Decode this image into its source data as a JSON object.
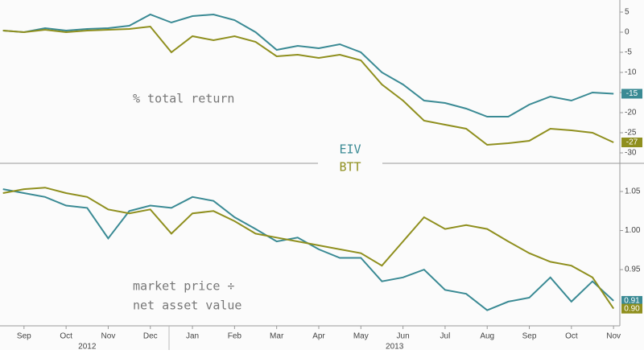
{
  "chart_data": [
    {
      "type": "line",
      "annotation": "% total return",
      "x": [
        0.5,
        1,
        1.5,
        2,
        2.5,
        3,
        3.5,
        4,
        4.5,
        5,
        5.5,
        6,
        6.5,
        7,
        7.5,
        8,
        8.5,
        9,
        9.5,
        10,
        10.5,
        11,
        11.5,
        12,
        12.5,
        13,
        13.5,
        14,
        14.5,
        15
      ],
      "xlim": [
        0.43,
        15.15
      ],
      "ylim": [
        -32,
        8
      ],
      "yticks": [
        5,
        0,
        -5,
        -10,
        -15,
        -20,
        -25,
        -30
      ],
      "series": [
        {
          "name": "EIV",
          "color": "#3a8a94",
          "end_label": "-15",
          "values": [
            0.4,
            0,
            1,
            0.4,
            0.8,
            1,
            1.6,
            4.4,
            2.4,
            4,
            4.4,
            3,
            0,
            -4.4,
            -3.4,
            -4,
            -3,
            -5,
            -10,
            -13,
            -17,
            -17.6,
            -19,
            -21,
            -21,
            -18,
            -16,
            -17,
            -15,
            -15.3
          ]
        },
        {
          "name": "BTT",
          "color": "#8f8f1e",
          "end_label": "-27",
          "values": [
            0.4,
            0,
            0.6,
            0,
            0.4,
            0.6,
            0.8,
            1.4,
            -5,
            -1,
            -2,
            -1,
            -2.4,
            -6,
            -5.6,
            -6.4,
            -5.6,
            -7,
            -13,
            -17,
            -22,
            -23,
            -24,
            -28,
            -27.6,
            -27,
            -24,
            -24.4,
            -25,
            -27.4
          ]
        }
      ]
    },
    {
      "type": "line",
      "annotation": [
        "market price ÷",
        "net asset value"
      ],
      "x": [
        0.5,
        1,
        1.5,
        2,
        2.5,
        3,
        3.5,
        4,
        4.5,
        5,
        5.5,
        6,
        6.5,
        7,
        7.5,
        8,
        8.5,
        9,
        9.5,
        10,
        10.5,
        11,
        11.5,
        12,
        12.5,
        13,
        13.5,
        14,
        14.5,
        15
      ],
      "xlim": [
        0.43,
        15.15
      ],
      "ylim": [
        0.878,
        1.084
      ],
      "yticks": [
        1.05,
        {
          "value": 1,
          "label": "1.00"
        },
        0.95
      ],
      "xticks": [
        {
          "value": 1,
          "label": "Sep"
        },
        {
          "value": 2,
          "label": "Oct"
        },
        {
          "value": 3,
          "label": "Nov"
        },
        {
          "value": 4,
          "label": "Dec"
        },
        {
          "value": 5,
          "label": "Jan"
        },
        {
          "value": 6,
          "label": "Feb"
        },
        {
          "value": 7,
          "label": "Mar"
        },
        {
          "value": 8,
          "label": "Apr"
        },
        {
          "value": 9,
          "label": "May"
        },
        {
          "value": 10,
          "label": "Jun"
        },
        {
          "value": 11,
          "label": "Jul"
        },
        {
          "value": 12,
          "label": "Aug"
        },
        {
          "value": 13,
          "label": "Sep"
        },
        {
          "value": 14,
          "label": "Oct"
        },
        {
          "value": 15,
          "label": "Nov"
        }
      ],
      "year_labels": [
        {
          "value": 2.5,
          "label": "2012"
        },
        {
          "value": 9.8,
          "label": "2013"
        }
      ],
      "series": [
        {
          "color": "#3a8a94",
          "end_label": "0.91",
          "values": [
            1.053,
            1.048,
            1.043,
            1.032,
            1.029,
            0.99,
            1.025,
            1.032,
            1.029,
            1.043,
            1.038,
            1.017,
            1.002,
            0.986,
            0.991,
            0.976,
            0.965,
            0.965,
            0.935,
            0.94,
            0.95,
            0.924,
            0.919,
            0.898,
            0.909,
            0.914,
            0.94,
            0.909,
            0.935,
            0.91
          ]
        },
        {
          "color": "#8f8f1e",
          "end_label": "0.90",
          "values": [
            1.048,
            1.053,
            1.055,
            1.048,
            1.043,
            1.027,
            1.022,
            1.027,
            0.996,
            1.022,
            1.025,
            1.012,
            0.996,
            0.991,
            0.986,
            0.981,
            0.976,
            0.971,
            0.955,
            0.986,
            1.017,
            1.002,
            1.007,
            1.002,
            0.986,
            0.971,
            0.96,
            0.955,
            0.94,
            0.9
          ]
        }
      ]
    }
  ]
}
